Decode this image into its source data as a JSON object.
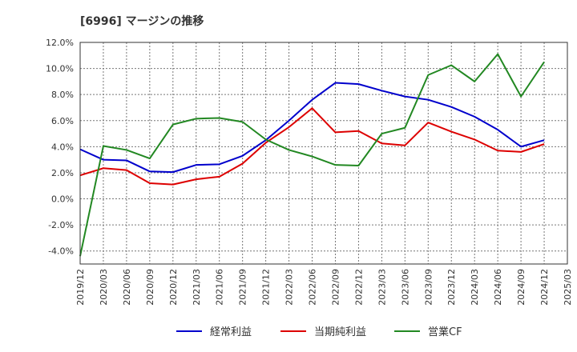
{
  "chart_data": {
    "type": "line",
    "title": "[6996]  マージンの推移",
    "x": [
      "2019/12",
      "2020/03",
      "2020/06",
      "2020/09",
      "2020/12",
      "2021/03",
      "2021/06",
      "2021/09",
      "2021/12",
      "2022/03",
      "2022/06",
      "2022/09",
      "2022/12",
      "2023/03",
      "2023/06",
      "2023/09",
      "2023/12",
      "2024/03",
      "2024/06",
      "2024/09",
      "2024/12",
      "2025/03"
    ],
    "y_ticks": [
      "12.0%",
      "10.0%",
      "8.0%",
      "6.0%",
      "4.0%",
      "2.0%",
      "0.0%",
      "-2.0%",
      "-4.0%"
    ],
    "ylim": [
      -5,
      12
    ],
    "grid": true,
    "legend_position": "bottom",
    "series": [
      {
        "name": "経常利益",
        "color": "#0000cc",
        "values": [
          3.8,
          3.0,
          2.95,
          2.1,
          2.05,
          2.6,
          2.65,
          3.3,
          4.5,
          6.0,
          7.6,
          8.9,
          8.8,
          8.3,
          7.85,
          7.6,
          7.05,
          6.3,
          5.3,
          4.0,
          4.5,
          null
        ]
      },
      {
        "name": "当期純利益",
        "color": "#dd0000",
        "values": [
          1.8,
          2.35,
          2.2,
          1.2,
          1.1,
          1.5,
          1.7,
          2.7,
          4.3,
          5.5,
          6.95,
          5.1,
          5.2,
          4.25,
          4.1,
          5.85,
          5.15,
          4.55,
          3.7,
          3.6,
          4.2,
          null
        ]
      },
      {
        "name": "営業CF",
        "color": "#228822",
        "values": [
          -4.4,
          4.05,
          3.75,
          3.1,
          5.7,
          6.15,
          6.2,
          5.9,
          4.55,
          3.75,
          3.25,
          2.6,
          2.55,
          5.0,
          5.45,
          9.5,
          10.25,
          9.0,
          11.1,
          7.85,
          10.5,
          null
        ]
      }
    ]
  }
}
